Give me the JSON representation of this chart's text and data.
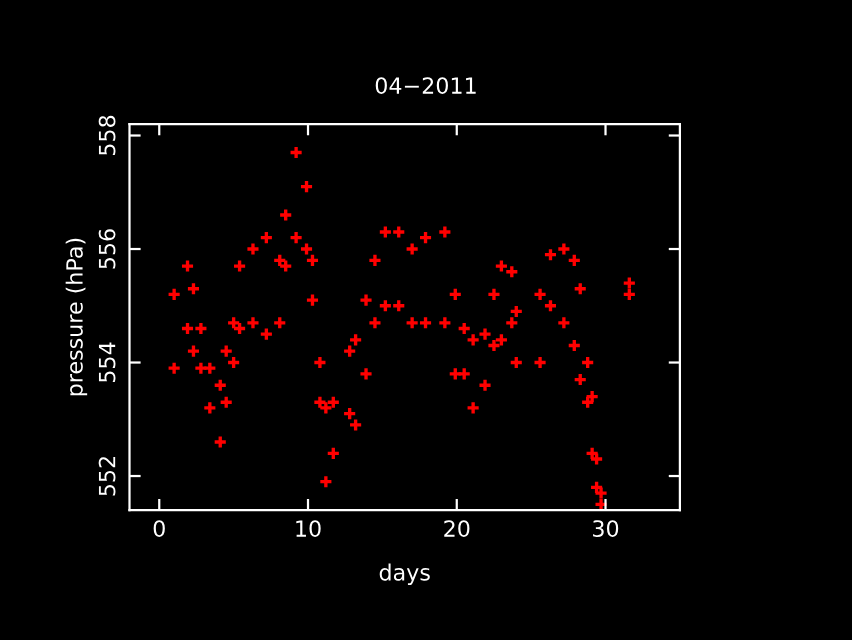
{
  "chart_data": {
    "type": "scatter",
    "title": "04−2011",
    "xlabel": "days",
    "ylabel": "pressure (hPa)",
    "xlim": [
      -2,
      35
    ],
    "xticks": [
      0,
      10,
      20,
      30
    ],
    "ylim": [
      551.4,
      558.2
    ],
    "yticks": [
      552,
      554,
      556,
      558
    ],
    "grid": false,
    "marker": "cross",
    "series": [
      {
        "color": "#ff0000",
        "x": [
          1.0,
          1.0,
          1.9,
          1.9,
          2.3,
          2.3,
          2.8,
          2.8,
          3.4,
          3.4,
          4.1,
          4.1,
          4.5,
          4.5,
          5.0,
          5.0,
          5.4,
          5.4,
          6.3,
          6.3,
          7.2,
          7.2,
          8.1,
          8.1,
          8.5,
          8.5,
          9.2,
          9.2,
          9.9,
          9.9,
          10.3,
          10.3,
          10.8,
          10.8,
          11.2,
          11.2,
          11.7,
          11.7,
          12.8,
          12.8,
          13.2,
          13.2,
          13.9,
          13.9,
          14.5,
          14.5,
          15.2,
          15.2,
          16.1,
          16.1,
          17.0,
          17.0,
          17.9,
          17.9,
          19.2,
          19.2,
          19.9,
          19.9,
          20.5,
          20.5,
          21.1,
          21.1,
          21.9,
          21.9,
          22.5,
          22.5,
          23.0,
          23.0,
          23.7,
          23.7,
          24.0,
          24.0,
          25.6,
          25.6,
          26.3,
          26.3,
          27.2,
          27.2,
          27.9,
          27.9,
          28.3,
          28.3,
          28.8,
          28.8,
          29.1,
          29.1,
          29.4,
          29.4,
          29.7,
          29.7,
          31.6,
          31.6
        ],
        "values": [
          555.2,
          553.9,
          555.7,
          554.6,
          555.3,
          554.2,
          554.6,
          553.9,
          553.9,
          553.2,
          553.6,
          552.6,
          554.2,
          553.3,
          554.7,
          554.0,
          555.7,
          554.6,
          556.0,
          554.7,
          556.2,
          554.5,
          555.8,
          554.7,
          556.6,
          555.7,
          557.7,
          556.2,
          557.1,
          556.0,
          555.8,
          555.1,
          554.0,
          553.3,
          553.2,
          551.9,
          553.3,
          552.4,
          554.2,
          553.1,
          554.4,
          552.9,
          555.1,
          553.8,
          555.8,
          554.7,
          556.3,
          555.0,
          556.3,
          555.0,
          556.0,
          554.7,
          556.2,
          554.7,
          556.3,
          554.7,
          555.2,
          553.8,
          554.6,
          553.8,
          554.4,
          553.2,
          554.5,
          553.6,
          555.2,
          554.3,
          555.7,
          554.4,
          555.6,
          554.7,
          554.9,
          554.0,
          555.2,
          554.0,
          555.9,
          555.0,
          556.0,
          554.7,
          555.8,
          554.3,
          555.3,
          553.7,
          554.0,
          553.3,
          553.4,
          552.4,
          552.3,
          551.8,
          551.7,
          551.5,
          555.4,
          555.2
        ]
      }
    ]
  }
}
